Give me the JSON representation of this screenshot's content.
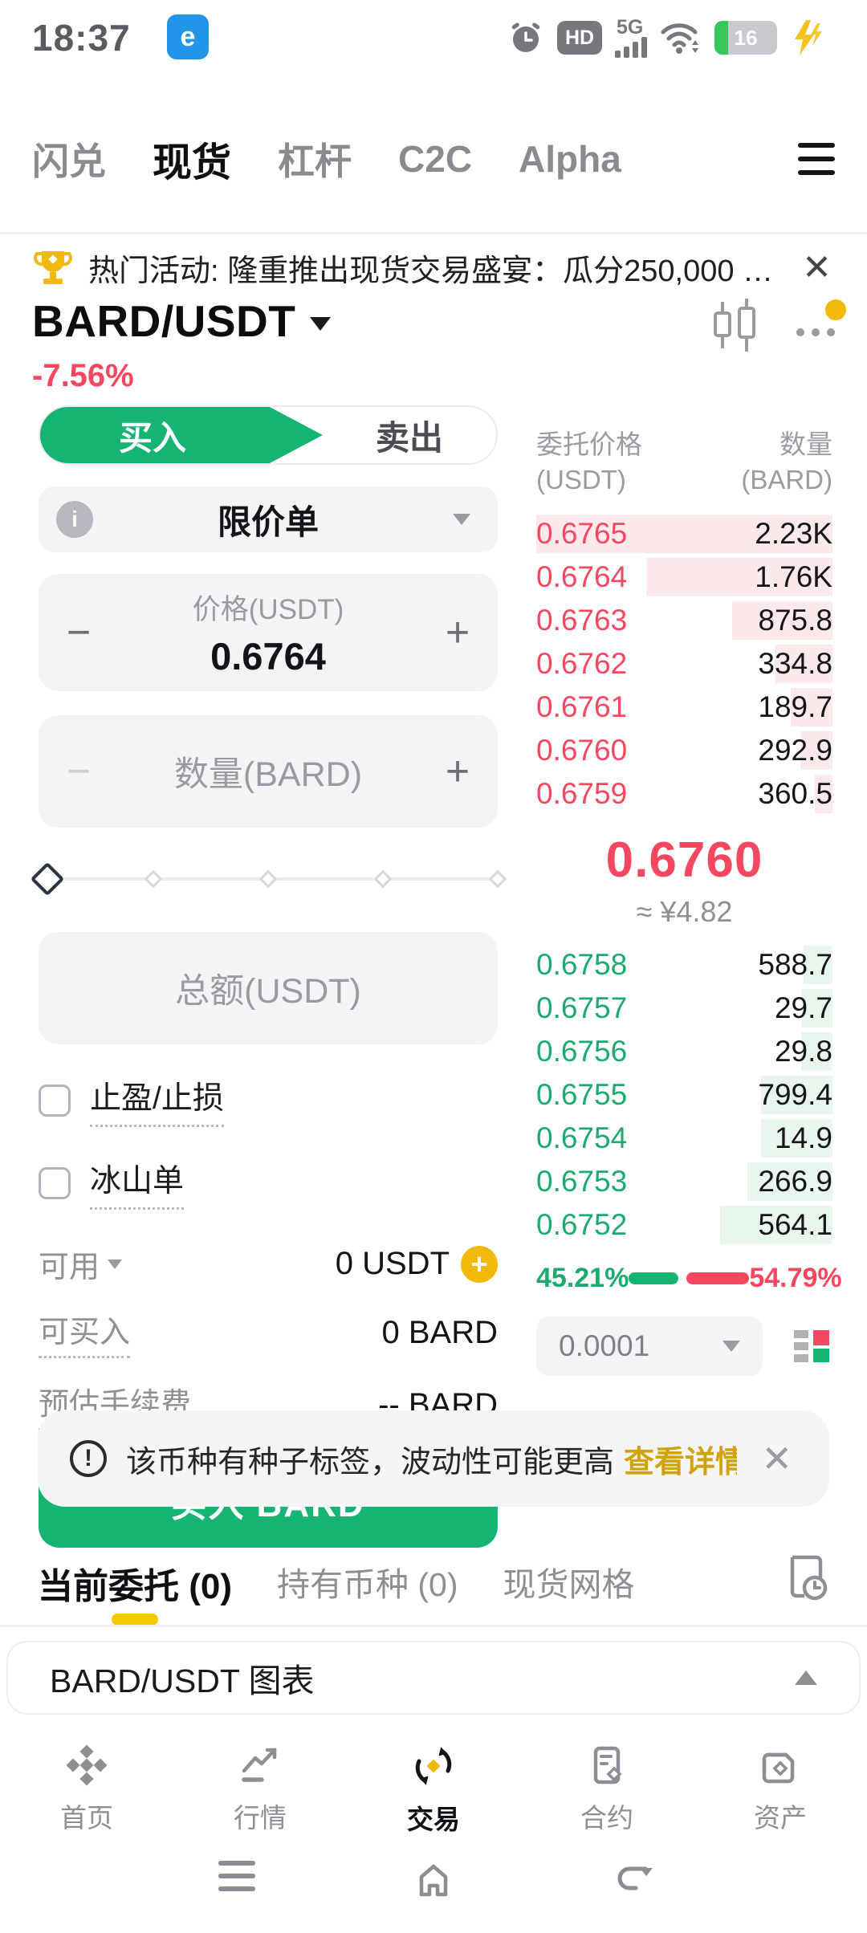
{
  "status_bar": {
    "time": "18:37",
    "app_badge": "e",
    "network_label": "5G",
    "battery_level": "16"
  },
  "top_tabs": {
    "tabs": [
      {
        "label": "闪兑"
      },
      {
        "label": "现货"
      },
      {
        "label": "杠杆"
      },
      {
        "label": "C2C"
      },
      {
        "label": "Alpha"
      }
    ]
  },
  "promo": {
    "text": "热门活动: 隆重推出现货交易盛宴：瓜分250,000 US...",
    "close": "✕"
  },
  "pair": {
    "symbol": "BARD/USDT",
    "change": "-7.56%"
  },
  "trade": {
    "buy_tab": "买入",
    "sell_tab": "卖出",
    "order_type": "限价单",
    "info_glyph": "i",
    "price_label": "价格(USDT)",
    "price_value": "0.6764",
    "amount_label": "数量(BARD)",
    "total_label": "总额(USDT)",
    "minus_glyph": "−",
    "plus_glyph": "+",
    "tpsl_label": "止盈/止损",
    "iceberg_label": "冰山单",
    "available_label": "可用",
    "available_value": "0 USDT",
    "max_buy_label": "可买入",
    "max_buy_value": "0 BARD",
    "fee_label": "预估手续费",
    "fee_value": "-- BARD",
    "submit_label": "买入 BARD"
  },
  "orderbook": {
    "price_header": "委托价格",
    "price_unit": "(USDT)",
    "amount_header": "数量",
    "amount_unit": "(BARD)",
    "asks": [
      {
        "price": "0.6765",
        "amount": "2.23K",
        "depth": 100
      },
      {
        "price": "0.6764",
        "amount": "1.76K",
        "depth": 63
      },
      {
        "price": "0.6763",
        "amount": "875.8",
        "depth": 34
      },
      {
        "price": "0.6762",
        "amount": "334.8",
        "depth": 19.5
      },
      {
        "price": "0.6761",
        "amount": "189.7",
        "depth": 14
      },
      {
        "price": "0.6760",
        "amount": "292.9",
        "depth": 10.8
      },
      {
        "price": "0.6759",
        "amount": "360.5",
        "depth": 6
      }
    ],
    "last_price": "0.6760",
    "fiat_value": "≈ ¥4.82",
    "bids": [
      {
        "price": "0.6758",
        "amount": "588.7",
        "depth": 9.7
      },
      {
        "price": "0.6757",
        "amount": "29.7",
        "depth": 10.2
      },
      {
        "price": "0.6756",
        "amount": "29.8",
        "depth": 10.7
      },
      {
        "price": "0.6755",
        "amount": "799.4",
        "depth": 24
      },
      {
        "price": "0.6754",
        "amount": "14.9",
        "depth": 24.2
      },
      {
        "price": "0.6753",
        "amount": "266.9",
        "depth": 28.6
      },
      {
        "price": "0.6752",
        "amount": "564.1",
        "depth": 38
      }
    ],
    "buy_ratio": "45.21%",
    "sell_ratio": "54.79%",
    "tick_size": "0.0001"
  },
  "seed_warning": {
    "text": "该币种有种子标签，波动性可能更高",
    "link": "查看详情",
    "close": "✕"
  },
  "position_tabs": {
    "tabs": [
      {
        "label": "当前委托 (0)"
      },
      {
        "label": "持有币种 (0)"
      },
      {
        "label": "现货网格"
      }
    ]
  },
  "chart_card": {
    "title": "BARD/USDT 图表"
  },
  "bottom_nav": {
    "items": [
      {
        "label": "首页"
      },
      {
        "label": "行情"
      },
      {
        "label": "交易"
      },
      {
        "label": "合约"
      },
      {
        "label": "资产"
      }
    ]
  }
}
